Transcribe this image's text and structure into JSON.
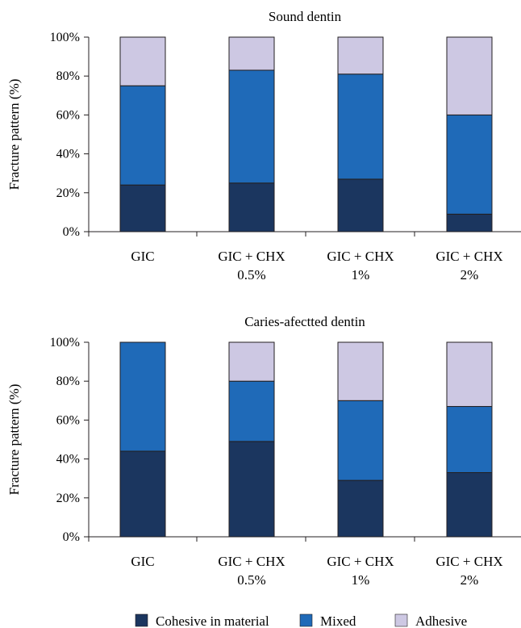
{
  "colors": {
    "cohesive": "#1b365f",
    "mixed": "#1f6ab8",
    "adhesive": "#cdc8e3",
    "axis": "#231f20"
  },
  "legend": [
    "Cohesive in material",
    "Mixed",
    "Adhesive"
  ],
  "chart_data": [
    {
      "type": "bar",
      "stacked": true,
      "title": "Sound dentin",
      "ylabel": "Fracture pattern (%)",
      "ylim": [
        0,
        100
      ],
      "yticks": [
        "0%",
        "20%",
        "40%",
        "60%",
        "80%",
        "100%"
      ],
      "categories": [
        [
          "GIC"
        ],
        [
          "GIC + CHX",
          "0.5%"
        ],
        [
          "GIC + CHX",
          "1%"
        ],
        [
          "GIC + CHX",
          "2%"
        ]
      ],
      "series": [
        {
          "name": "Cohesive in material",
          "values": [
            24,
            25,
            27,
            9
          ]
        },
        {
          "name": "Mixed",
          "values": [
            51,
            58,
            54,
            51
          ]
        },
        {
          "name": "Adhesive",
          "values": [
            25,
            17,
            19,
            40
          ]
        }
      ]
    },
    {
      "type": "bar",
      "stacked": true,
      "title": "Caries-afectted dentin",
      "ylabel": "Fracture pattern (%)",
      "ylim": [
        0,
        100
      ],
      "yticks": [
        "0%",
        "20%",
        "40%",
        "60%",
        "80%",
        "100%"
      ],
      "categories": [
        [
          "GIC"
        ],
        [
          "GIC + CHX",
          "0.5%"
        ],
        [
          "GIC + CHX",
          "1%"
        ],
        [
          "GIC + CHX",
          "2%"
        ]
      ],
      "series": [
        {
          "name": "Cohesive in material",
          "values": [
            44,
            49,
            29,
            33
          ]
        },
        {
          "name": "Mixed",
          "values": [
            56,
            31,
            41,
            34
          ]
        },
        {
          "name": "Adhesive",
          "values": [
            0,
            20,
            30,
            33
          ]
        }
      ]
    }
  ]
}
